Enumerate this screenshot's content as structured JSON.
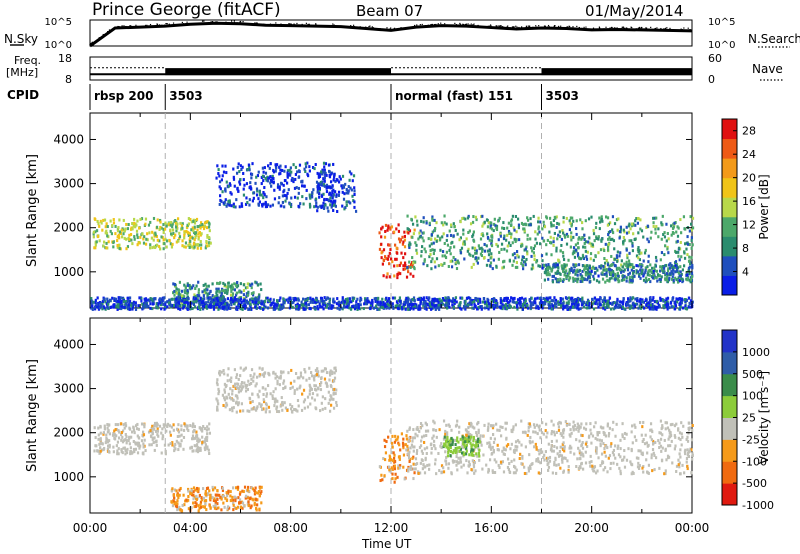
{
  "header": {
    "station": "Prince George (fitACF)",
    "beam": "Beam 07",
    "date": "01/May/2014"
  },
  "labels": {
    "nsky": "N.Sky",
    "nsearch": "N.Search",
    "freq_line1": "Freq.",
    "freq_line2": "[MHz]",
    "nave": "Nave",
    "cpid": "CPID",
    "time_ut": "Time UT"
  },
  "colors": {
    "background": "#ffffff",
    "axis": "#000000",
    "dashed_marker": "#b0b0b0"
  },
  "chart_data": [
    {
      "type": "line",
      "name": "noise",
      "left_axis": {
        "label": "N.Sky",
        "ticks": [
          "10^5",
          "10^0"
        ]
      },
      "right_axis": {
        "label": "N.Search",
        "ticks": [
          "10^5",
          "10^0"
        ]
      },
      "x": [
        0,
        1,
        2,
        3,
        4,
        5,
        6,
        7,
        8,
        9,
        10,
        11,
        12,
        13,
        14,
        15,
        16,
        17,
        18,
        19,
        20,
        21,
        22,
        23,
        24
      ],
      "nsky_log10": [
        0,
        3.8,
        4.0,
        4.2,
        4.6,
        4.8,
        4.7,
        4.4,
        4.3,
        4.2,
        4.1,
        3.7,
        3.3,
        4.0,
        4.3,
        4.2,
        3.9,
        3.6,
        3.8,
        3.7,
        3.4,
        3.5,
        3.4,
        3.3,
        3.2
      ]
    },
    {
      "type": "line",
      "name": "frequency",
      "left_axis": {
        "label": "Freq. [MHz]",
        "ticks": [
          18,
          8
        ],
        "ylim": [
          8,
          18
        ]
      },
      "right_axis": {
        "label": "Nave",
        "ticks": [
          60,
          0
        ],
        "ylim": [
          0,
          60
        ]
      },
      "freq_mhz": 10.5,
      "nave_segments": [
        {
          "start": 0,
          "end": 3,
          "nave": 32
        },
        {
          "start": 3,
          "end": 12,
          "nave": 22
        },
        {
          "start": 12,
          "end": 18,
          "nave": 32
        },
        {
          "start": 18,
          "end": 24,
          "nave": 22
        }
      ]
    },
    {
      "type": "table",
      "name": "cpid",
      "segments": [
        {
          "start": 0,
          "label": "rbsp 200"
        },
        {
          "start": 3,
          "label": "3503"
        },
        {
          "start": 12,
          "label": "normal (fast) 151"
        },
        {
          "start": 18,
          "label": "3503"
        }
      ]
    },
    {
      "type": "heatmap",
      "name": "power",
      "ylabel": "Slant Range [km]",
      "ylim": [
        180,
        4600
      ],
      "yticks": [
        1000,
        2000,
        3000,
        4000
      ],
      "xlim": [
        0,
        24
      ],
      "colorbar": {
        "label": "Power [dB]",
        "range": [
          0,
          30
        ],
        "ticks": [
          4,
          8,
          12,
          16,
          20,
          24,
          28
        ],
        "colors": [
          "#0a1ee6",
          "#1f4fbd",
          "#2a8c6e",
          "#4ca86a",
          "#b8d84a",
          "#f0c418",
          "#f39a1a",
          "#ee5a16",
          "#e01010"
        ]
      },
      "features": [
        {
          "t0": 0.1,
          "t1": 4.8,
          "r0": 1550,
          "r1": 2250,
          "level": 15
        },
        {
          "t0": 3.2,
          "t1": 6.8,
          "r0": 260,
          "r1": 800,
          "level": 9
        },
        {
          "t0": 5.0,
          "t1": 9.8,
          "r0": 2500,
          "r1": 3500,
          "level": 3
        },
        {
          "t0": 9.0,
          "t1": 10.6,
          "r0": 2400,
          "r1": 3300,
          "level": 3
        },
        {
          "t0": 11.5,
          "t1": 12.9,
          "r0": 900,
          "r1": 2100,
          "level": 26
        },
        {
          "t0": 12.6,
          "t1": 24.0,
          "r0": 1100,
          "r1": 2300,
          "level": 10
        },
        {
          "t0": 18.0,
          "t1": 24.0,
          "r0": 800,
          "r1": 1200,
          "level": 8
        },
        {
          "t0": 0.0,
          "t1": 24.0,
          "r0": 180,
          "r1": 450,
          "level": 4
        }
      ]
    },
    {
      "type": "heatmap",
      "name": "velocity",
      "ylabel": "Slant Range [km]",
      "xlabel": "Time UT",
      "ylim": [
        180,
        4600
      ],
      "yticks": [
        1000,
        2000,
        3000,
        4000
      ],
      "xlim": [
        0,
        24
      ],
      "xticks": [
        "00:00",
        "04:00",
        "08:00",
        "12:00",
        "16:00",
        "20:00",
        "00:00"
      ],
      "colorbar": {
        "label": "Velocity [m s⁻¹]",
        "tick_labels": [
          "1000",
          "500",
          "100",
          "25",
          "-25",
          "-100",
          "-500",
          "-1000"
        ],
        "colors": [
          "#2233c8",
          "#2f5da8",
          "#3a8c4a",
          "#8ccc3a",
          "#c0c0b8",
          "#f59a1a",
          "#f06a10",
          "#e01a10"
        ]
      },
      "features": [
        {
          "t0": 0.1,
          "t1": 4.8,
          "r0": 1550,
          "r1": 2250,
          "vel": 0
        },
        {
          "t0": 3.2,
          "t1": 6.8,
          "r0": 260,
          "r1": 800,
          "vel": -300
        },
        {
          "t0": 5.0,
          "t1": 9.8,
          "r0": 2500,
          "r1": 3500,
          "vel": 0
        },
        {
          "t0": 11.5,
          "t1": 12.9,
          "r0": 900,
          "r1": 2100,
          "vel": -300
        },
        {
          "t0": 12.6,
          "t1": 24.0,
          "r0": 1100,
          "r1": 2300,
          "vel": 0
        },
        {
          "t0": 14.0,
          "t1": 15.5,
          "r0": 1500,
          "r1": 1950,
          "vel": 80
        }
      ]
    }
  ]
}
